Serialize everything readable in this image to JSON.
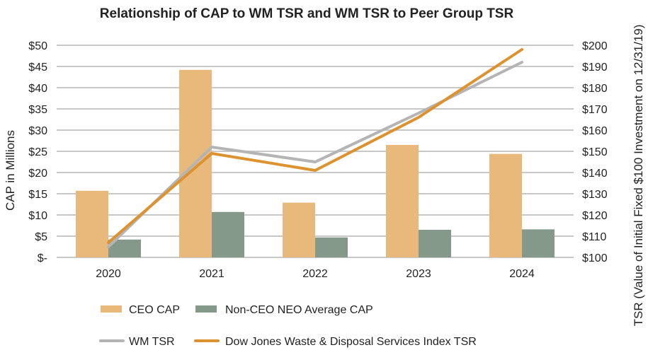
{
  "chart_data": {
    "type": "bar",
    "title": "Relationship of CAP to WM TSR and WM TSR to Peer Group TSR",
    "xlabel": "",
    "ylabel": "CAP in Millions",
    "y2label": "TSR (Value of Initial Fixed $100 Investment on 12/31/19)",
    "categories": [
      "2020",
      "2021",
      "2022",
      "2023",
      "2024"
    ],
    "ylim": [
      0,
      50
    ],
    "y2lim": [
      100,
      200
    ],
    "yticks": [
      "$-",
      "$5",
      "$10",
      "$15",
      "$20",
      "$25",
      "$30",
      "$35",
      "$40",
      "$45",
      "$50"
    ],
    "y2ticks": [
      "$100",
      "$110",
      "$120",
      "$130",
      "$140",
      "$150",
      "$160",
      "$170",
      "$180",
      "$190",
      "$200"
    ],
    "grid": true,
    "legend_position": "bottom",
    "series": [
      {
        "name": "CEO CAP",
        "kind": "bar",
        "axis": "left",
        "color": "#e8b97a",
        "values": [
          15.7,
          44.2,
          12.9,
          26.5,
          24.4
        ]
      },
      {
        "name": "Non-CEO NEO Average CAP",
        "kind": "bar",
        "axis": "left",
        "color": "#84998a",
        "values": [
          4.2,
          10.7,
          4.7,
          6.5,
          6.6
        ]
      },
      {
        "name": "WM TSR",
        "kind": "line",
        "axis": "right",
        "color": "#b4b4b4",
        "values": [
          105,
          152,
          145,
          168,
          192
        ]
      },
      {
        "name": "Dow Jones Waste & Disposal Services Index TSR",
        "kind": "line",
        "axis": "right",
        "color": "#dd9230",
        "values": [
          107,
          149,
          141,
          166,
          198
        ]
      }
    ]
  }
}
